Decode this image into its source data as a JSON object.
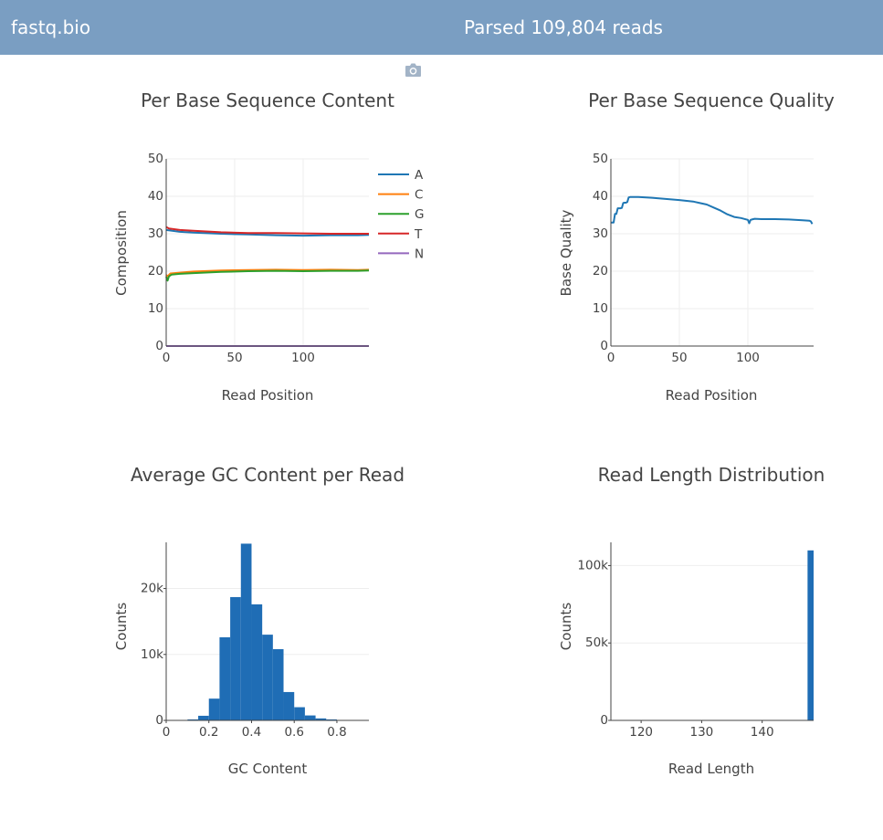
{
  "header": {
    "brand": "fastq.bio",
    "status": "Parsed 109,804 reads"
  },
  "toolbar": {
    "camera_icon": "camera-icon"
  },
  "colors": {
    "header_bg": "#7a9ec2",
    "A": "#1f77b4",
    "C": "#ff7f0e",
    "G": "#2ca02c",
    "T": "#d62728",
    "N": "#9467bd",
    "bar": "#1f6db5"
  },
  "chart_data": [
    {
      "id": "content",
      "type": "line",
      "title": "Per Base Sequence Content",
      "xlabel": "Read Position",
      "ylabel": "Composition",
      "xlim": [
        0,
        148
      ],
      "ylim": [
        0,
        50
      ],
      "xticks": [
        0,
        50,
        100
      ],
      "yticks": [
        0,
        10,
        20,
        30,
        40,
        50
      ],
      "legend": "right",
      "series": [
        {
          "name": "A",
          "x": [
            0,
            10,
            20,
            40,
            60,
            80,
            100,
            120,
            140,
            148
          ],
          "y": [
            31,
            30.5,
            30.3,
            30,
            29.8,
            29.6,
            29.5,
            29.6,
            29.6,
            29.7
          ]
        },
        {
          "name": "C",
          "x": [
            0,
            1,
            3,
            10,
            20,
            40,
            60,
            80,
            100,
            120,
            140,
            148
          ],
          "y": [
            19,
            18.6,
            19.4,
            19.6,
            19.9,
            20.2,
            20.3,
            20.4,
            20.3,
            20.4,
            20.3,
            20.4
          ]
        },
        {
          "name": "G",
          "x": [
            0,
            1,
            2,
            4,
            10,
            20,
            40,
            60,
            80,
            100,
            120,
            140,
            148
          ],
          "y": [
            18.5,
            17.5,
            18.6,
            19.1,
            19.3,
            19.5,
            19.8,
            20,
            20.1,
            20,
            20.1,
            20.1,
            20.2
          ]
        },
        {
          "name": "T",
          "x": [
            0,
            2,
            10,
            20,
            40,
            60,
            80,
            100,
            120,
            140,
            148
          ],
          "y": [
            31.8,
            31.4,
            31,
            30.8,
            30.4,
            30.2,
            30.2,
            30.1,
            30,
            30,
            30
          ]
        },
        {
          "name": "N",
          "x": [
            0,
            148
          ],
          "y": [
            0,
            0
          ]
        }
      ]
    },
    {
      "id": "quality",
      "type": "line",
      "title": "Per Base Sequence Quality",
      "xlabel": "Read Position",
      "ylabel": "Base Quality",
      "xlim": [
        0,
        148
      ],
      "ylim": [
        0,
        50
      ],
      "xticks": [
        0,
        50,
        100
      ],
      "yticks": [
        0,
        10,
        20,
        30,
        40,
        50
      ],
      "series": [
        {
          "x": [
            0,
            2,
            3,
            4,
            5,
            6,
            7,
            8,
            9,
            10,
            11,
            12,
            13,
            14,
            15,
            20,
            30,
            40,
            50,
            60,
            65,
            70,
            75,
            80,
            85,
            90,
            95,
            100,
            101,
            102,
            103,
            105,
            110,
            120,
            130,
            140,
            145,
            146,
            147
          ],
          "y": [
            33,
            33,
            35.3,
            35.3,
            36.8,
            36.8,
            36.8,
            36.9,
            38.2,
            38.3,
            38.3,
            38.5,
            39.7,
            39.8,
            39.8,
            39.8,
            39.6,
            39.3,
            39,
            38.6,
            38.2,
            37.8,
            37,
            36.2,
            35.2,
            34.5,
            34.2,
            33.7,
            32.8,
            33.7,
            33.8,
            34,
            33.9,
            33.9,
            33.8,
            33.6,
            33.5,
            33.3,
            32.6
          ]
        }
      ]
    },
    {
      "id": "gc",
      "type": "bar",
      "title": "Average GC Content per Read",
      "xlabel": "GC Content",
      "ylabel": "Counts",
      "xlim": [
        0,
        0.95
      ],
      "ylim": [
        0,
        27000
      ],
      "xticks": [
        0,
        0.2,
        0.4,
        0.6,
        0.8
      ],
      "xtick_labels": [
        "0",
        "0.2",
        "0.4",
        "0.6",
        "0.8"
      ],
      "yticks": [
        0,
        10000,
        20000
      ],
      "ytick_labels": [
        "0",
        "10k",
        "20k"
      ],
      "bin_width": 0.05,
      "bin_starts": [
        0.0,
        0.05,
        0.1,
        0.15,
        0.2,
        0.25,
        0.3,
        0.35,
        0.4,
        0.45,
        0.5,
        0.55,
        0.6,
        0.65,
        0.7,
        0.75,
        0.8,
        0.85,
        0.9
      ],
      "values": [
        0,
        50,
        150,
        700,
        3300,
        12600,
        18700,
        26800,
        17600,
        13000,
        10800,
        4300,
        2000,
        750,
        300,
        150,
        50,
        20,
        0
      ]
    },
    {
      "id": "length",
      "type": "bar",
      "title": "Read Length Distribution",
      "xlabel": "Read Length",
      "ylabel": "Counts",
      "xlim": [
        115,
        148.5
      ],
      "ylim": [
        0,
        115000
      ],
      "xticks": [
        120,
        130,
        140
      ],
      "yticks": [
        0,
        50000,
        100000
      ],
      "ytick_labels": [
        "0",
        "50k",
        "100k"
      ],
      "bar_width": 1,
      "categories": [
        148
      ],
      "values": [
        109804
      ]
    }
  ]
}
